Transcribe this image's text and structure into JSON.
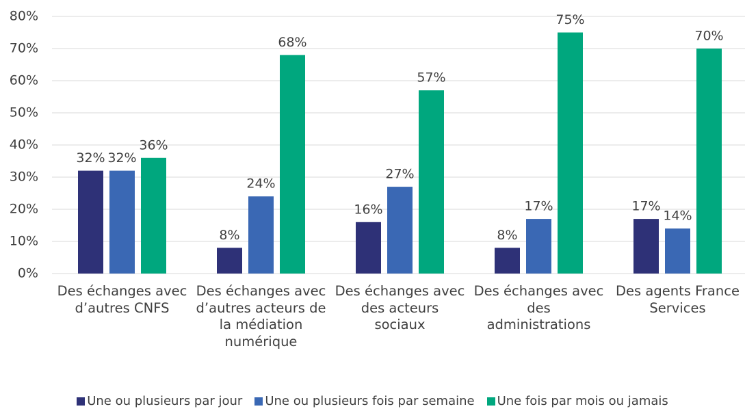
{
  "chart_data": {
    "type": "bar",
    "categories": [
      "Des échanges avec d’autres CNFS",
      "Des échanges avec d’autres acteurs de la médiation numérique",
      "Des échanges avec des acteurs sociaux",
      "Des échanges avec des administrations",
      "Des agents France Services"
    ],
    "series": [
      {
        "name": "Une ou plusieurs par jour",
        "color": "#2e3177",
        "values": [
          32,
          8,
          16,
          8,
          17
        ],
        "value_labels": [
          "32%",
          "8%",
          "16%",
          "8%",
          "17%"
        ]
      },
      {
        "name": "Une ou plusieurs fois par semaine",
        "color": "#3a68b4",
        "values": [
          32,
          24,
          27,
          17,
          14
        ],
        "value_labels": [
          "32%",
          "24%",
          "27%",
          "17%",
          "14%"
        ]
      },
      {
        "name": "Une fois par mois ou jamais",
        "color": "#00a77e",
        "values": [
          36,
          68,
          57,
          75,
          70
        ],
        "value_labels": [
          "36%",
          "68%",
          "57%",
          "75%",
          "70%"
        ]
      }
    ],
    "ylim": [
      0,
      80
    ],
    "yticks": [
      {
        "value": 0,
        "label": "0%"
      },
      {
        "value": 10,
        "label": "10%"
      },
      {
        "value": 20,
        "label": "20%"
      },
      {
        "value": 30,
        "label": "30%"
      },
      {
        "value": 40,
        "label": "40%"
      },
      {
        "value": 50,
        "label": "50%"
      },
      {
        "value": 60,
        "label": "60%"
      },
      {
        "value": 70,
        "label": "70%"
      },
      {
        "value": 80,
        "label": "80%"
      }
    ],
    "grid": true,
    "legend": "bottom"
  }
}
